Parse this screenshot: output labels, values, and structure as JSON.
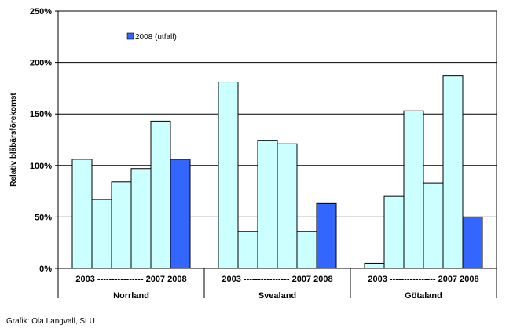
{
  "chart_data": {
    "type": "bar",
    "ylabel": "Relativ blåbärsförekomst",
    "ylim": [
      0,
      250
    ],
    "y_ticks": [
      "0%",
      "50%",
      "100%",
      "150%",
      "200%",
      "250%"
    ],
    "y_tick_values": [
      0,
      50,
      100,
      150,
      200,
      250
    ],
    "grid": true,
    "legend": {
      "label": "2008 (utfall)",
      "position": "top-left"
    },
    "colors": {
      "default": "#ccffff",
      "highlight": "#3366ff"
    },
    "groups": [
      {
        "name": "Norrland",
        "year_label": "2003 ---------------- 2007  2008",
        "values": [
          106,
          67,
          84,
          97,
          143,
          106
        ],
        "highlight_index": 5
      },
      {
        "name": "Svealand",
        "year_label": "2003 ---------------- 2007  2008",
        "values": [
          181,
          36,
          124,
          121,
          36,
          63
        ],
        "highlight_index": 5
      },
      {
        "name": "Götaland",
        "year_label": "2003 ---------------- 2007  2008",
        "values": [
          5,
          70,
          153,
          83,
          187,
          50
        ],
        "highlight_index": 5
      }
    ]
  },
  "credit": "Grafik: Ola Langvall, SLU"
}
